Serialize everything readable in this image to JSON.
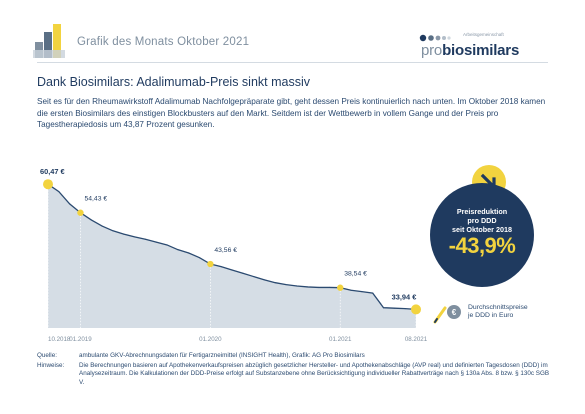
{
  "header": {
    "title": "Grafik des Monats Oktober 2021",
    "brand_small": "Arbeitsgemeinschaft",
    "brand_light": "pro",
    "brand_bold": "biosimilars"
  },
  "headline": "Dank Biosimilars: Adalimumab-Preis sinkt massiv",
  "intro": "Seit es für den Rheumawirkstoff Adalimumab Nachfolgepräparate gibt, geht dessen Preis kontinuierlich nach unten. Im Oktober 2018 kamen die ersten Biosimilars des einstigen Blockbusters auf den Markt. Seitdem ist der Wettbewerb in vollem Gange und der Preis pro Tagestherapiedosis um 43,87 Prozent gesunken.",
  "badge": {
    "line1": "Preisreduktion",
    "line2": "pro DDD",
    "line3": "seit Oktober 2018",
    "value": "-43,9%"
  },
  "legend_note": {
    "line1": "Durchschnittspreise",
    "line2": "je DDD in Euro"
  },
  "footer": {
    "source_label": "Quelle:",
    "source_text": "ambulante GKV-Abrechnungsdaten für Fertigarzneimittel (INSIGHT Health), Grafik: AG Pro Biosimilars",
    "note_label": "Hinweise:",
    "note_text": "Die Berechnungen basieren auf Apothekenverkaufspreisen abzüglich gesetzlicher Hersteller- und Apothekenabschläge (AVP real) und definierten Tagesdosen (DDD) im Analysezeitraum. Die Kalkulationen der DDD-Preise erfolgt auf Substanzebene ohne Berücksichtigung individueller Rabattverträge nach § 130a Abs. 8 bzw. § 130c SGB V."
  },
  "colors": {
    "navy": "#1f3a5f",
    "line": "#2b4a70",
    "area": "#d5dde5",
    "yellow": "#f2d33f",
    "grey_text": "#7f8f9f"
  },
  "chart_data": {
    "type": "area",
    "ylim": [
      30,
      62
    ],
    "x_ticks": [
      {
        "index": 0,
        "label": "10.2018"
      },
      {
        "index": 3,
        "label": "01.2019"
      },
      {
        "index": 15,
        "label": "01.2020"
      },
      {
        "index": 27,
        "label": "01.2021"
      },
      {
        "index": 34,
        "label": "08.2021"
      }
    ],
    "annotations": [
      {
        "index": 0,
        "label": "60,47 €",
        "bold": true
      },
      {
        "index": 3,
        "label": "54,43 €",
        "bold": false
      },
      {
        "index": 15,
        "label": "43,56 €",
        "bold": false
      },
      {
        "index": 27,
        "label": "38,54 €",
        "bold": false
      },
      {
        "index": 34,
        "label": "33,94 €",
        "bold": true
      }
    ],
    "values": [
      60.47,
      58.9,
      56.3,
      54.43,
      52.9,
      51.6,
      50.6,
      49.9,
      49.3,
      48.8,
      48.2,
      47.6,
      46.6,
      45.9,
      44.9,
      43.56,
      43.0,
      42.3,
      41.6,
      40.9,
      40.2,
      39.6,
      39.2,
      38.9,
      38.7,
      38.6,
      38.6,
      38.54,
      38.0,
      37.7,
      37.4,
      34.3,
      34.2,
      34.1,
      33.94
    ]
  }
}
